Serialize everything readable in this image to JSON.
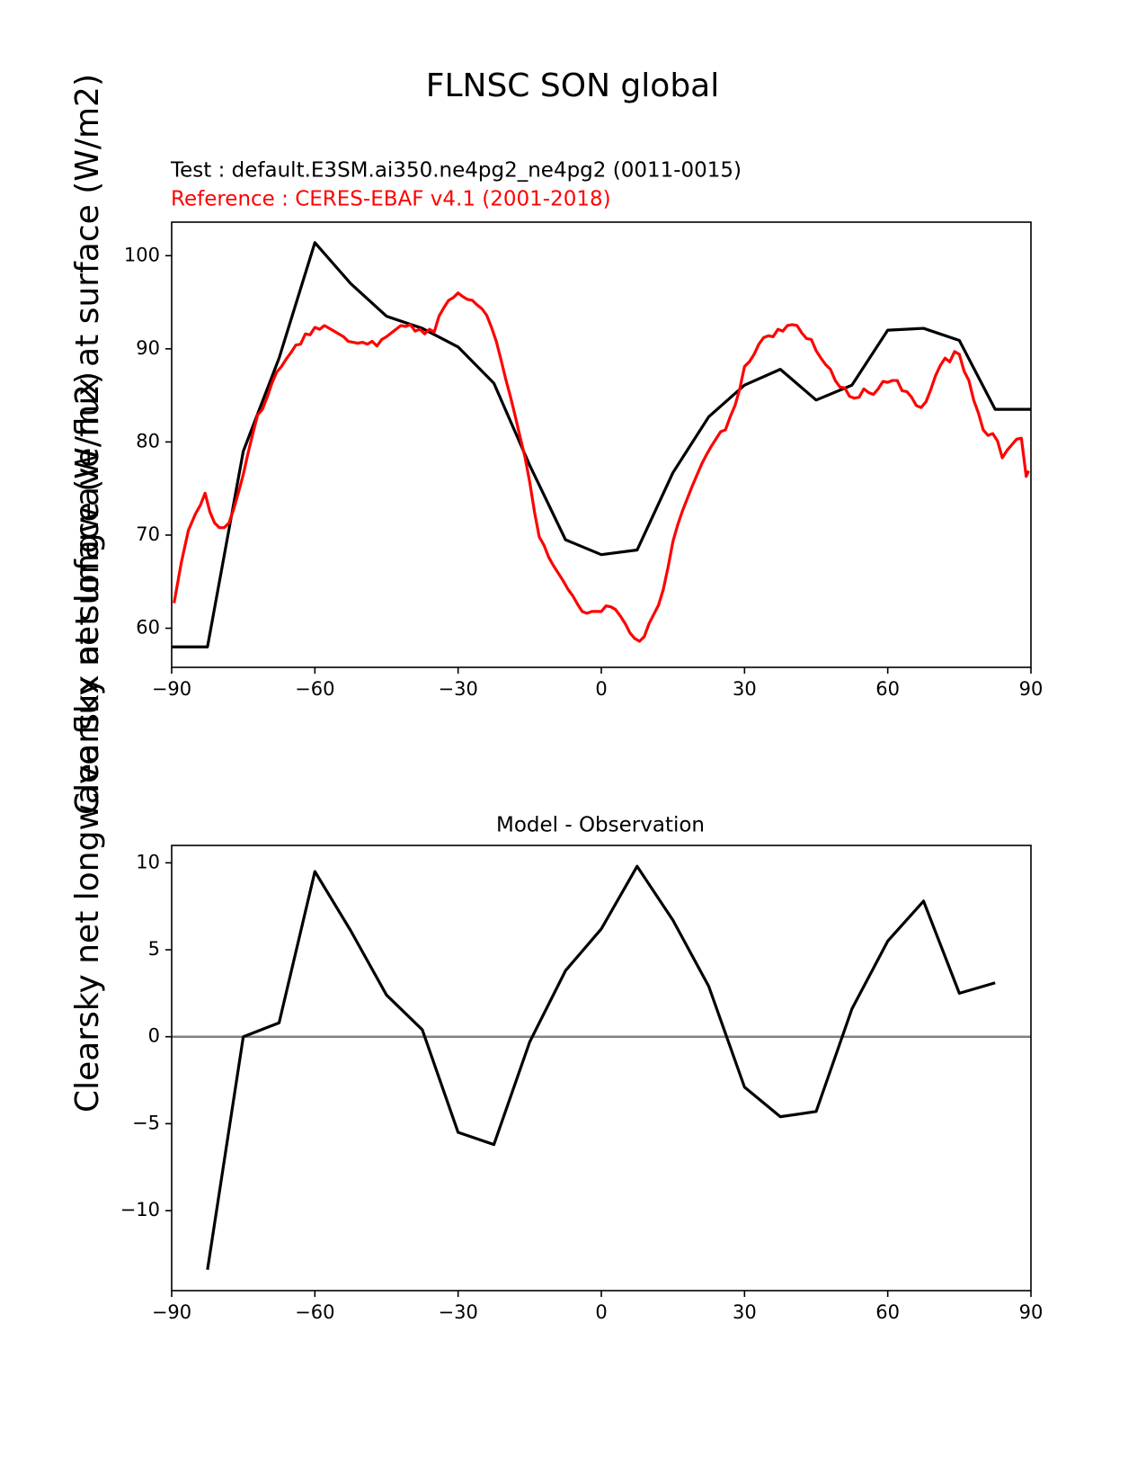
{
  "figure": {
    "suptitle": "FLNSC SON global",
    "ylabel": "Clearsky net longwave flux at surface (W/m2)",
    "test_label": "Test : default.E3SM.ai350.ne4pg2_ne4pg2 (0011-0015)",
    "reference_label": "Reference : CERES-EBAF v4.1 (2001-2018)",
    "diff_title": "Model - Observation"
  },
  "chart_data": [
    {
      "type": "line",
      "title": "FLNSC SON global",
      "ylabel": "Clearsky net longwave flux at surface (W/m2)",
      "xlim": [
        -90,
        90
      ],
      "ylim": [
        55.8,
        103.6
      ],
      "xticks": [
        -90,
        -60,
        -30,
        0,
        30,
        60,
        90
      ],
      "xtick_labels": [
        "−90",
        "−60",
        "−30",
        "0",
        "30",
        "60",
        "90"
      ],
      "yticks": [
        60,
        70,
        80,
        90,
        100
      ],
      "ytick_labels": [
        "60",
        "70",
        "80",
        "90",
        "100"
      ],
      "series": [
        {
          "name": "Test : default.E3SM.ai350.ne4pg2_ne4pg2 (0011-0015)",
          "color": "#000000",
          "x": [
            -90,
            -82.5,
            -75,
            -67.5,
            -60,
            -52.5,
            -45,
            -37.5,
            -30,
            -22.5,
            -15,
            -7.5,
            0,
            7.5,
            15,
            22.5,
            30,
            37.5,
            45,
            52.5,
            60,
            67.5,
            75,
            82.5,
            90
          ],
          "y": [
            58,
            58,
            79,
            89,
            101.4,
            97,
            93.5,
            92.2,
            90.2,
            86.3,
            77.5,
            69.5,
            67.9,
            68.4,
            76.7,
            82.7,
            86.1,
            87.8,
            84.5,
            86.1,
            92,
            92.2,
            90.9,
            83.5,
            83.5
          ]
        },
        {
          "name": "Reference : CERES-EBAF v4.1 (2001-2018)",
          "color": "#ff0000",
          "x": [
            -89.5,
            -88,
            -86.5,
            -85,
            -84,
            -83,
            -82,
            -81,
            -80,
            -79,
            -78,
            -77,
            -76,
            -75,
            -74,
            -73,
            -72,
            -71,
            -70,
            -69,
            -68,
            -67,
            -66,
            -65,
            -64,
            -63,
            -62,
            -61,
            -60,
            -59,
            -58,
            -57,
            -56,
            -55,
            -54,
            -53,
            -52,
            -51,
            -50,
            -49,
            -48,
            -47,
            -46,
            -45,
            -44,
            -43,
            -42,
            -41,
            -40,
            -39,
            -38,
            -37,
            -36,
            -35,
            -34,
            -33,
            -32,
            -31,
            -30,
            -29,
            -28,
            -27,
            -26,
            -25,
            -24,
            -23,
            -22,
            -21,
            -20,
            -19,
            -18,
            -17,
            -16,
            -15,
            -14,
            -13,
            -12,
            -11,
            -10,
            -9,
            -8,
            -7,
            -6,
            -5,
            -4,
            -3,
            -2,
            -1,
            0,
            1,
            2,
            3,
            4,
            5,
            6,
            7,
            8,
            9,
            10,
            11,
            12,
            13,
            14,
            15,
            16,
            17,
            18,
            19,
            20,
            21,
            22,
            23,
            24,
            25,
            26,
            27,
            28,
            29,
            30,
            31,
            32,
            33,
            34,
            35,
            36,
            37,
            38,
            39,
            40,
            41,
            42,
            43,
            44,
            45,
            46,
            47,
            48,
            49,
            50,
            51,
            52,
            53,
            54,
            55,
            56,
            57,
            58,
            59,
            60,
            61,
            62,
            63,
            64,
            65,
            66,
            67,
            68,
            69,
            70,
            71,
            72,
            73,
            74,
            75,
            76,
            77,
            78,
            79,
            80,
            81,
            82,
            83,
            84,
            85,
            86,
            87,
            88,
            89,
            89.5
          ],
          "y": [
            62.7,
            67,
            70.5,
            72.3,
            73.2,
            74.5,
            72.5,
            71.3,
            70.8,
            70.8,
            71.3,
            72.8,
            74.6,
            76.5,
            78.8,
            80.9,
            82.9,
            83.5,
            84.8,
            86.3,
            87.5,
            88.1,
            88.9,
            89.6,
            90.4,
            90.5,
            91.6,
            91.5,
            92.3,
            92.1,
            92.5,
            92.2,
            91.9,
            91.6,
            91.3,
            90.8,
            90.7,
            90.6,
            90.7,
            90.5,
            90.8,
            90.3,
            91,
            91.3,
            91.7,
            92.1,
            92.5,
            92.4,
            92.6,
            91.9,
            92.1,
            91.6,
            92.1,
            91.8,
            93.5,
            94.4,
            95.2,
            95.5,
            96,
            95.6,
            95.3,
            95.2,
            94.7,
            94.3,
            93.6,
            92.3,
            90.8,
            88.8,
            86.7,
            84.8,
            82.7,
            80.5,
            78.4,
            75.7,
            72.5,
            69.8,
            68.9,
            67.6,
            66.7,
            65.9,
            65.1,
            64.2,
            63.5,
            62.6,
            61.8,
            61.6,
            61.8,
            61.8,
            61.8,
            62.4,
            62.3,
            62,
            61.3,
            60.5,
            59.5,
            58.9,
            58.6,
            59.1,
            60.5,
            61.5,
            62.5,
            64.2,
            66.6,
            69.3,
            71.1,
            72.6,
            73.9,
            75.2,
            76.4,
            77.6,
            78.6,
            79.5,
            80.3,
            81.1,
            81.3,
            82.7,
            83.9,
            85.7,
            88.1,
            88.6,
            89.4,
            90.5,
            91.2,
            91.4,
            91.3,
            92.1,
            91.9,
            92.5,
            92.6,
            92.5,
            91.7,
            91.1,
            91,
            89.8,
            89,
            88.3,
            87.8,
            86.6,
            85.9,
            85.8,
            84.9,
            84.7,
            84.8,
            85.7,
            85.3,
            85.1,
            85.7,
            86.5,
            86.4,
            86.6,
            86.6,
            85.5,
            85.4,
            84.8,
            83.9,
            83.7,
            84.3,
            85.6,
            87.1,
            88.2,
            89,
            88.6,
            89.7,
            89.4,
            87.6,
            86.6,
            84.5,
            83.1,
            81.3,
            80.7,
            80.9,
            80.1,
            78.3,
            79.1,
            79.7,
            80.3,
            80.4,
            76.3,
            76.9
          ]
        }
      ]
    },
    {
      "type": "line",
      "title": "Model - Observation",
      "xlim": [
        -90,
        90
      ],
      "ylim": [
        -14.6,
        11.0
      ],
      "xticks": [
        -90,
        -60,
        -30,
        0,
        30,
        60,
        90
      ],
      "xtick_labels": [
        "−90",
        "−60",
        "−30",
        "0",
        "30",
        "60",
        "90"
      ],
      "yticks": [
        -10,
        -5,
        0,
        5,
        10
      ],
      "ytick_labels": [
        "−10",
        "−5",
        "0",
        "5",
        "10"
      ],
      "zero_line_color": "#808080",
      "series": [
        {
          "color": "#000000",
          "x": [
            -82.5,
            -75,
            -67.5,
            -60,
            -52.5,
            -45,
            -37.5,
            -30,
            -22.5,
            -15,
            -7.5,
            0,
            7.5,
            15,
            22.5,
            30,
            37.5,
            45,
            52.5,
            60,
            67.5,
            75,
            82.5
          ],
          "y": [
            -13.4,
            0,
            0.8,
            9.5,
            6.1,
            2.4,
            0.4,
            -5.5,
            -6.2,
            -0.3,
            3.8,
            6.2,
            9.8,
            6.7,
            2.9,
            -2.9,
            -4.6,
            -4.3,
            1.6,
            5.5,
            7.8,
            2.5,
            3.1
          ]
        }
      ]
    }
  ]
}
